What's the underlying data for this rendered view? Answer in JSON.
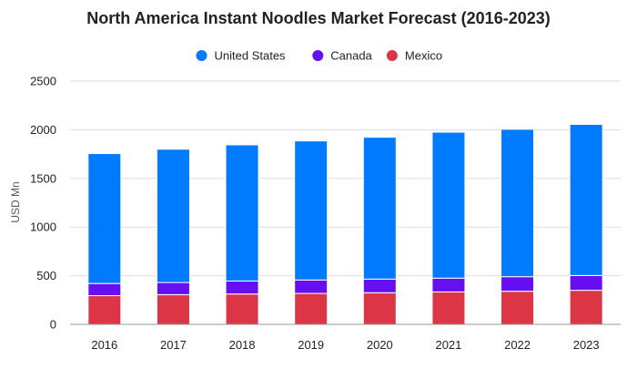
{
  "chart_data": {
    "type": "bar",
    "stacked": true,
    "title": "North America Instant Noodles Market Forecast (2016-2023)",
    "xlabel": "",
    "ylabel": "USD Mn",
    "ylim": [
      0,
      2500
    ],
    "yticks": [
      0,
      500,
      1000,
      1500,
      2000,
      2500
    ],
    "grid": true,
    "legend_position": "top-center",
    "categories": [
      "2016",
      "2017",
      "2018",
      "2019",
      "2020",
      "2021",
      "2022",
      "2023"
    ],
    "series": [
      {
        "name": "Mexico",
        "color": "#dc3545",
        "values": [
          295,
          305,
          312,
          318,
          325,
          333,
          340,
          350
        ]
      },
      {
        "name": "Canada",
        "color": "#6610f2",
        "values": [
          125,
          125,
          133,
          138,
          140,
          142,
          150,
          152
        ]
      },
      {
        "name": "United States",
        "color": "#007bff",
        "values": [
          1335,
          1370,
          1400,
          1429,
          1458,
          1500,
          1515,
          1553
        ]
      }
    ],
    "legend_order": [
      "United States",
      "Canada",
      "Mexico"
    ]
  }
}
